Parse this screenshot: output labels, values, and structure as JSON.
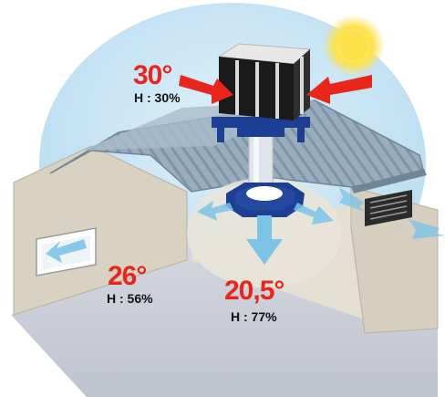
{
  "outside": {
    "temperature": "30°",
    "humidity": "H : 30%"
  },
  "room": {
    "temperature": "26°",
    "humidity": "H : 56%"
  },
  "outlet": {
    "temperature": "20,5°",
    "humidity": "H : 77%"
  },
  "colors": {
    "sky": "#b9dcf1",
    "sun": "#fde14a",
    "roof": "#8fa6b7",
    "wall": "#d9d2c3",
    "floor": "#c9ccd6",
    "duct": "#1c3f94",
    "hot_arrow": "#e8261c",
    "cool_air": "#7cc3e8",
    "temp_text": "#e8261c"
  },
  "icons": [
    "sun-icon",
    "evaporative-cooler-icon",
    "hot-air-arrow-icon",
    "cool-air-arrow-icon",
    "exhaust-vent-icon"
  ]
}
